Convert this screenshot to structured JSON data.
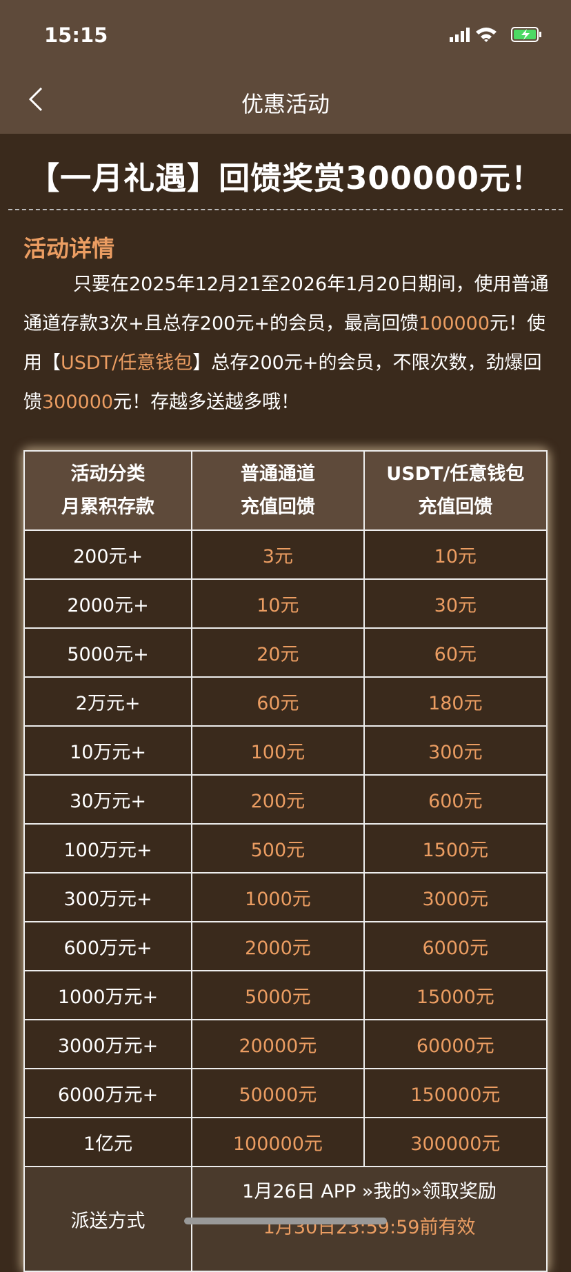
{
  "status_bar": {
    "time": "15:15"
  },
  "nav": {
    "title": "优惠活动"
  },
  "headline": "【一月礼遇】回馈奖赏300000元！",
  "details": {
    "title": "活动详情",
    "paragraph": [
      {
        "text": "只要在2025年12月21至2026年1月20日期间，使用普通通道存款3次+且总存200元+的会员，最高回馈",
        "highlight": false
      },
      {
        "text": "100000",
        "highlight": true
      },
      {
        "text": "元！使用【",
        "highlight": false
      },
      {
        "text": "USDT/任意钱包",
        "highlight": true
      },
      {
        "text": "】总存200元+的会员，不限次数，劲爆回馈",
        "highlight": false
      },
      {
        "text": "300000",
        "highlight": true
      },
      {
        "text": "元！存越多送越多哦！",
        "highlight": false
      }
    ]
  },
  "table": {
    "header": [
      [
        "活动分类",
        "月累积存款"
      ],
      [
        "普通通道",
        "充值回馈"
      ],
      [
        "USDT/任意钱包",
        "充值回馈"
      ]
    ],
    "rows": [
      [
        "200元+",
        "3元",
        "10元"
      ],
      [
        "2000元+",
        "10元",
        "30元"
      ],
      [
        "5000元+",
        "20元",
        "60元"
      ],
      [
        "2万元+",
        "60元",
        "180元"
      ],
      [
        "10万元+",
        "100元",
        "300元"
      ],
      [
        "30万元+",
        "200元",
        "600元"
      ],
      [
        "100万元+",
        "500元",
        "1500元"
      ],
      [
        "300万元+",
        "1000元",
        "3000元"
      ],
      [
        "600万元+",
        "2000元",
        "6000元"
      ],
      [
        "1000万元+",
        "5000元",
        "15000元"
      ],
      [
        "3000万元+",
        "20000元",
        "60000元"
      ],
      [
        "6000万元+",
        "50000元",
        "150000元"
      ],
      [
        "1亿元",
        "100000元",
        "300000元"
      ]
    ],
    "footer": {
      "label": "派送方式",
      "lines": [
        "1月26日 APP »我的»领取奖励",
        "1月30日23:59:59前有效"
      ]
    }
  }
}
